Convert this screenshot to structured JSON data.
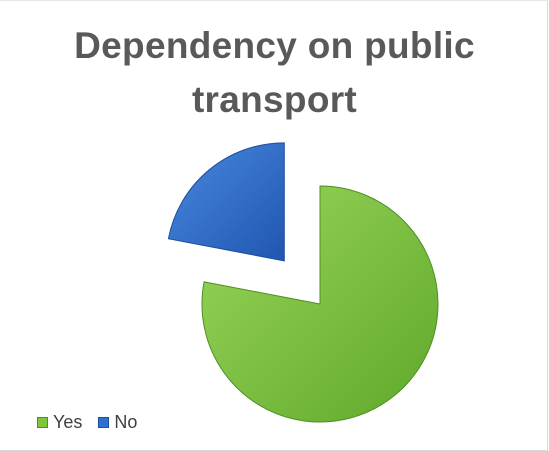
{
  "chart_data": {
    "type": "pie",
    "title_lines": [
      "Dependency on public",
      "transport"
    ],
    "title": "Dependency on public transport",
    "slices": [
      {
        "label": "Yes",
        "value": 78,
        "color": "#7cc83a"
      },
      {
        "label": "No",
        "value": 22,
        "color": "#2f6fd0"
      }
    ],
    "exploded": true,
    "legend_position": "bottom-left"
  }
}
